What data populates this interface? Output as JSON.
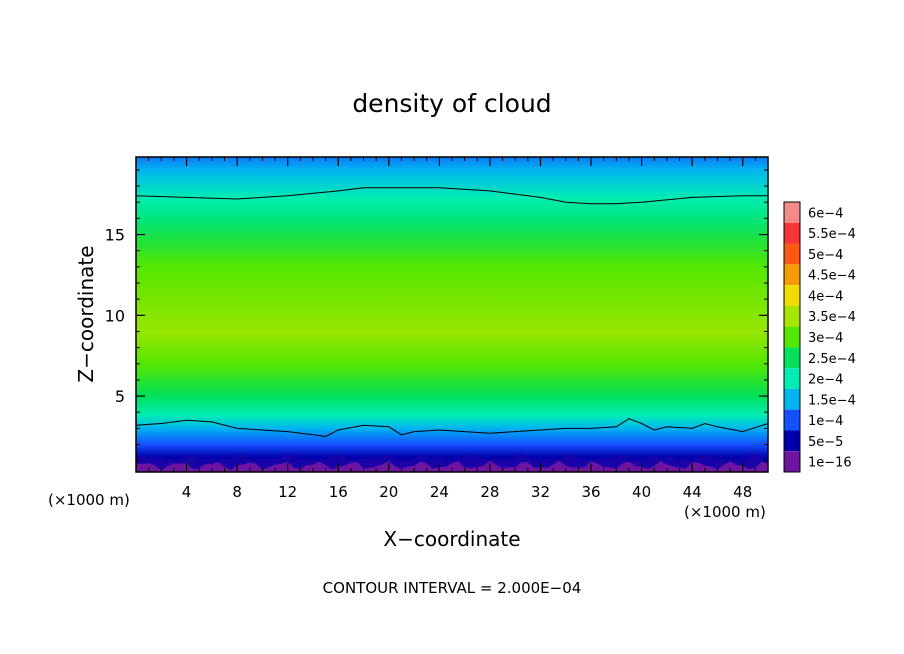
{
  "chart_data": {
    "type": "heatmap",
    "title": "density of cloud",
    "xlabel": "X−coordinate",
    "ylabel": "Z−coordinate",
    "x_unit_left": "(×1000 m)",
    "x_unit_right": "(×1000 m)",
    "footer": "CONTOUR INTERVAL = 2.000E−04",
    "xlim": [
      0,
      50
    ],
    "ylim": [
      0.3,
      19.8
    ],
    "x_ticks": [
      "4",
      "8",
      "12",
      "16",
      "20",
      "24",
      "28",
      "32",
      "36",
      "40",
      "44",
      "48"
    ],
    "x_tick_values": [
      4,
      8,
      12,
      16,
      20,
      24,
      28,
      32,
      36,
      40,
      44,
      48
    ],
    "y_ticks": [
      "5",
      "10",
      "15"
    ],
    "y_tick_values": [
      5,
      10,
      15
    ],
    "colorbar": {
      "labels": [
        "6e−4",
        "5.5e−4",
        "5e−4",
        "4.5e−4",
        "4e−4",
        "3.5e−4",
        "3e−4",
        "2.5e−4",
        "2e−4",
        "1.5e−4",
        "1e−4",
        "5e−5",
        "1e−16"
      ],
      "colors": [
        "#f58a8a",
        "#f53535",
        "#ff5a14",
        "#f59a00",
        "#f0dc00",
        "#a8e600",
        "#55e600",
        "#00e05a",
        "#00ecb4",
        "#00b4f0",
        "#1450ff",
        "#0000aa",
        "#6e14a0"
      ]
    },
    "vertical_profile": [
      {
        "z": 0.5,
        "value": 2e-05
      },
      {
        "z": 1.2,
        "value": 5e-05
      },
      {
        "z": 2.0,
        "value": 0.0001
      },
      {
        "z": 3.0,
        "value": 0.00015
      },
      {
        "z": 3.8,
        "value": 0.0002
      },
      {
        "z": 5.0,
        "value": 0.00025
      },
      {
        "z": 7.0,
        "value": 0.0003
      },
      {
        "z": 9.0,
        "value": 0.00034
      },
      {
        "z": 11.0,
        "value": 0.00032
      },
      {
        "z": 13.0,
        "value": 0.0003
      },
      {
        "z": 14.5,
        "value": 0.00027
      },
      {
        "z": 16.0,
        "value": 0.00023
      },
      {
        "z": 17.3,
        "value": 0.0002
      },
      {
        "z": 18.3,
        "value": 0.00017
      },
      {
        "z": 19.0,
        "value": 0.00015
      },
      {
        "z": 19.8,
        "value": 0.00012
      }
    ],
    "contour_lines": [
      {
        "level": 0.0002,
        "points": [
          [
            0,
            17.4
          ],
          [
            4,
            17.3
          ],
          [
            8,
            17.2
          ],
          [
            12,
            17.4
          ],
          [
            16,
            17.7
          ],
          [
            18,
            17.9
          ],
          [
            20,
            17.9
          ],
          [
            24,
            17.9
          ],
          [
            28,
            17.7
          ],
          [
            32,
            17.3
          ],
          [
            34,
            17.0
          ],
          [
            36,
            16.9
          ],
          [
            38,
            16.9
          ],
          [
            40,
            17.0
          ],
          [
            44,
            17.3
          ],
          [
            48,
            17.4
          ],
          [
            50,
            17.4
          ]
        ]
      },
      {
        "level": 0.0002,
        "points": [
          [
            0,
            3.2
          ],
          [
            2,
            3.3
          ],
          [
            4,
            3.5
          ],
          [
            6,
            3.4
          ],
          [
            8,
            3.0
          ],
          [
            10,
            2.9
          ],
          [
            12,
            2.8
          ],
          [
            14,
            2.6
          ],
          [
            15,
            2.5
          ],
          [
            16,
            2.9
          ],
          [
            18,
            3.2
          ],
          [
            20,
            3.1
          ],
          [
            21,
            2.6
          ],
          [
            22,
            2.8
          ],
          [
            24,
            2.9
          ],
          [
            26,
            2.8
          ],
          [
            28,
            2.7
          ],
          [
            30,
            2.8
          ],
          [
            32,
            2.9
          ],
          [
            34,
            3.0
          ],
          [
            36,
            3.0
          ],
          [
            38,
            3.1
          ],
          [
            39,
            3.6
          ],
          [
            40,
            3.3
          ],
          [
            41,
            2.9
          ],
          [
            42,
            3.1
          ],
          [
            44,
            3.0
          ],
          [
            45,
            3.3
          ],
          [
            46,
            3.1
          ],
          [
            48,
            2.8
          ],
          [
            50,
            3.3
          ]
        ]
      }
    ],
    "grid": false,
    "legend": "colorbar-right"
  }
}
